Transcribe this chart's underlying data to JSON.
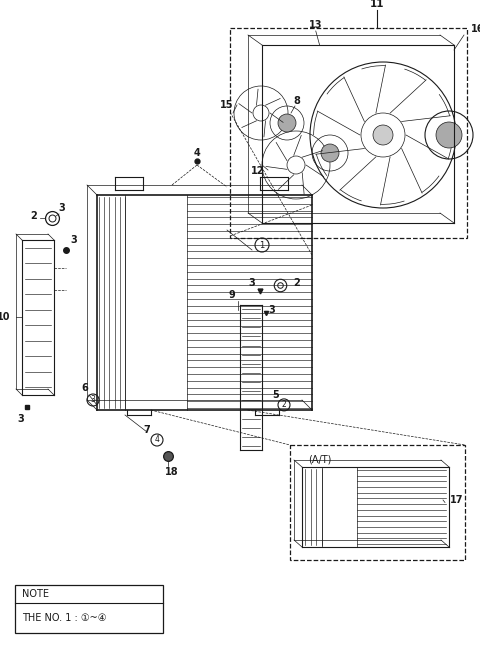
{
  "bg_color": "#ffffff",
  "line_color": "#1a1a1a",
  "fig_width": 4.8,
  "fig_height": 6.56,
  "dpi": 100,
  "note_text1": "NOTE",
  "note_text2": "THE NO. 1 : ①~④"
}
